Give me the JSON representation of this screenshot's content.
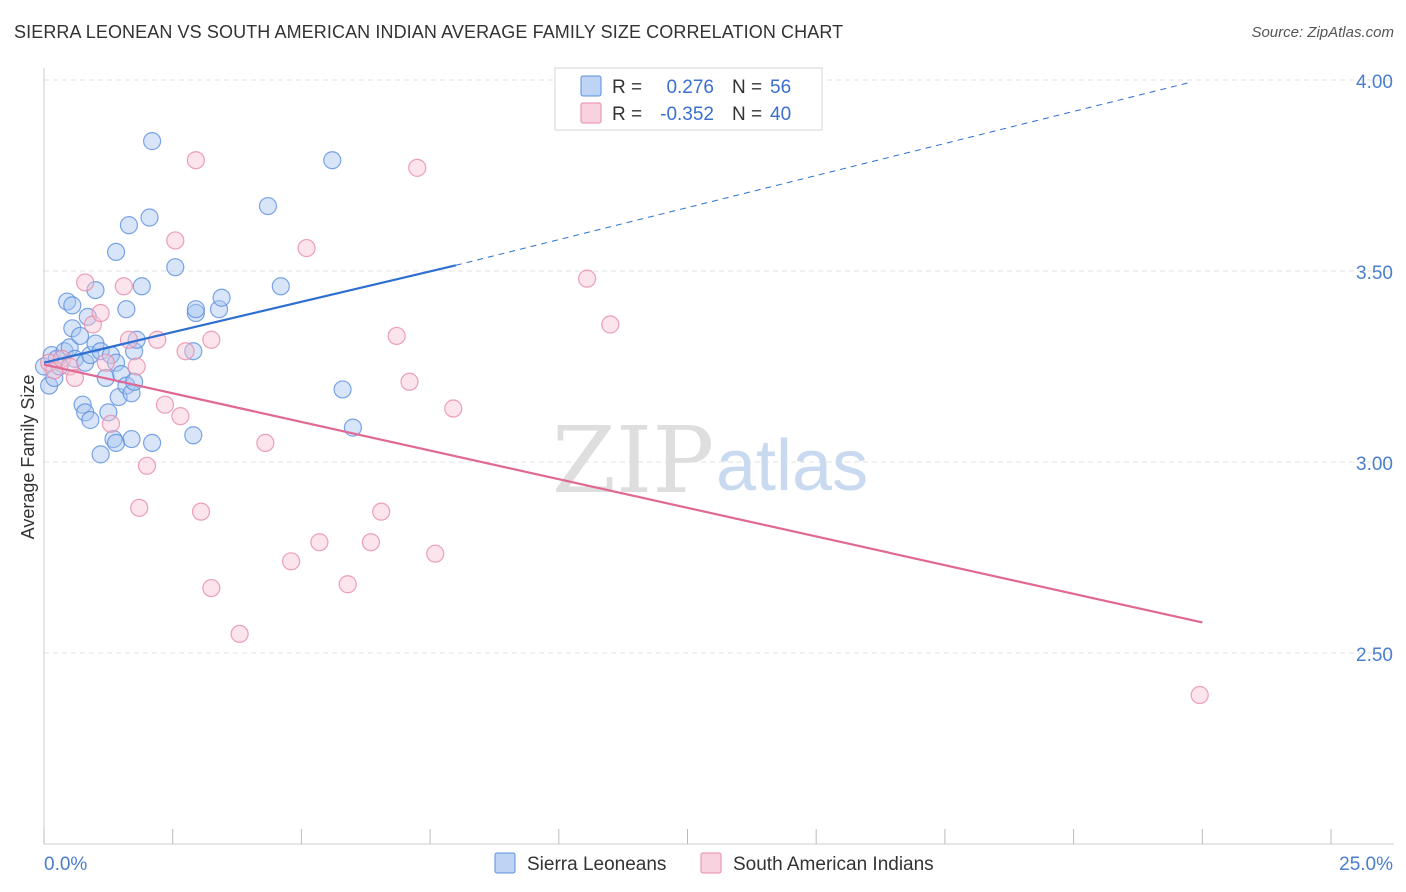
{
  "header": {
    "title": "SIERRA LEONEAN VS SOUTH AMERICAN INDIAN AVERAGE FAMILY SIZE CORRELATION CHART",
    "source": "Source: ZipAtlas.com"
  },
  "watermark": {
    "zip": "ZIP",
    "atlas": "atlas"
  },
  "colors": {
    "blue": "#5b8fe0",
    "blue_fill": "#a8c6f0",
    "blue_line": "#2f6fd0",
    "pink": "#e88aa8",
    "pink_fill": "#f6c3d3",
    "pink_line": "#e06894"
  },
  "legend": {
    "rows": [
      {
        "r_label": "R =",
        "r_value": "0.276",
        "n_label": "N =",
        "n_value": "56",
        "series": "blue"
      },
      {
        "r_label": "R =",
        "r_value": "-0.352",
        "n_label": "N =",
        "n_value": "40",
        "series": "pink"
      }
    ]
  },
  "bottom_legend": {
    "items": [
      {
        "label": "Sierra Leoneans",
        "series": "blue"
      },
      {
        "label": "South American Indians",
        "series": "pink"
      }
    ]
  },
  "chart_data": {
    "type": "scatter",
    "title": "SIERRA LEONEAN VS SOUTH AMERICAN INDIAN AVERAGE FAMILY SIZE CORRELATION CHART",
    "xlabel": "",
    "ylabel": "Average Family Size",
    "xlim": [
      0,
      25
    ],
    "ylim": [
      2.0,
      4.05
    ],
    "x_tick_labels": [
      {
        "value": 0,
        "label": "0.0%"
      },
      {
        "value": 25,
        "label": "25.0%"
      }
    ],
    "x_minor_ticks": [
      0,
      2.5,
      5,
      7.5,
      10,
      12.5,
      15,
      17.5,
      20,
      22.5,
      25
    ],
    "y_ticks": [
      {
        "value": 4.0,
        "label": "4.00"
      },
      {
        "value": 3.5,
        "label": "3.50"
      },
      {
        "value": 3.0,
        "label": "3.00"
      },
      {
        "value": 2.5,
        "label": "2.50"
      }
    ],
    "grid": true,
    "series": [
      {
        "name": "Sierra Leoneans",
        "color": "blue",
        "R": 0.276,
        "N": 56,
        "trend": {
          "x0": 0,
          "y0": 3.26,
          "x1": 8.0,
          "y1": 3.515,
          "dashed_to_x": 22.3,
          "dashed_to_y": 3.995
        },
        "points": [
          [
            0.0,
            3.25
          ],
          [
            0.1,
            3.2
          ],
          [
            0.15,
            3.28
          ],
          [
            0.2,
            3.22
          ],
          [
            0.25,
            3.27
          ],
          [
            0.3,
            3.25
          ],
          [
            0.4,
            3.29
          ],
          [
            0.5,
            3.3
          ],
          [
            0.55,
            3.35
          ],
          [
            0.6,
            3.27
          ],
          [
            0.7,
            3.33
          ],
          [
            0.8,
            3.26
          ],
          [
            0.9,
            3.28
          ],
          [
            1.0,
            3.31
          ],
          [
            1.1,
            3.29
          ],
          [
            1.2,
            3.22
          ],
          [
            1.3,
            3.28
          ],
          [
            1.4,
            3.26
          ],
          [
            1.45,
            3.17
          ],
          [
            1.5,
            3.23
          ],
          [
            1.6,
            3.2
          ],
          [
            1.7,
            3.18
          ],
          [
            1.75,
            3.21
          ],
          [
            0.45,
            3.42
          ],
          [
            0.55,
            3.41
          ],
          [
            0.85,
            3.38
          ],
          [
            1.0,
            3.45
          ],
          [
            1.6,
            3.4
          ],
          [
            1.75,
            3.29
          ],
          [
            1.8,
            3.32
          ],
          [
            0.75,
            3.15
          ],
          [
            0.8,
            3.13
          ],
          [
            0.9,
            3.11
          ],
          [
            1.1,
            3.02
          ],
          [
            1.25,
            3.13
          ],
          [
            1.35,
            3.06
          ],
          [
            1.4,
            3.05
          ],
          [
            1.7,
            3.06
          ],
          [
            2.1,
            3.05
          ],
          [
            1.4,
            3.55
          ],
          [
            1.65,
            3.62
          ],
          [
            1.9,
            3.46
          ],
          [
            2.05,
            3.64
          ],
          [
            2.1,
            3.84
          ],
          [
            2.55,
            3.51
          ],
          [
            2.9,
            3.29
          ],
          [
            2.95,
            3.39
          ],
          [
            2.95,
            3.4
          ],
          [
            2.9,
            3.07
          ],
          [
            3.4,
            3.4
          ],
          [
            3.45,
            3.43
          ],
          [
            4.35,
            3.67
          ],
          [
            4.6,
            3.46
          ],
          [
            5.6,
            3.79
          ],
          [
            5.8,
            3.19
          ],
          [
            6.0,
            3.09
          ]
        ]
      },
      {
        "name": "South American Indians",
        "color": "pink",
        "R": -0.352,
        "N": 40,
        "trend": {
          "x0": 0,
          "y0": 3.255,
          "x1": 22.5,
          "y1": 2.58
        },
        "points": [
          [
            0.1,
            3.26
          ],
          [
            0.2,
            3.24
          ],
          [
            0.35,
            3.27
          ],
          [
            0.5,
            3.25
          ],
          [
            0.6,
            3.22
          ],
          [
            0.8,
            3.47
          ],
          [
            0.95,
            3.36
          ],
          [
            1.1,
            3.39
          ],
          [
            1.2,
            3.26
          ],
          [
            1.3,
            3.1
          ],
          [
            1.55,
            3.46
          ],
          [
            1.65,
            3.32
          ],
          [
            1.8,
            3.25
          ],
          [
            1.85,
            2.88
          ],
          [
            2.0,
            2.99
          ],
          [
            2.2,
            3.32
          ],
          [
            2.35,
            3.15
          ],
          [
            2.55,
            3.58
          ],
          [
            2.65,
            3.12
          ],
          [
            2.75,
            3.29
          ],
          [
            2.95,
            3.79
          ],
          [
            3.05,
            2.87
          ],
          [
            3.25,
            3.32
          ],
          [
            3.25,
            2.67
          ],
          [
            3.8,
            2.55
          ],
          [
            4.3,
            3.05
          ],
          [
            4.8,
            2.74
          ],
          [
            5.1,
            3.56
          ],
          [
            5.35,
            2.79
          ],
          [
            5.9,
            2.68
          ],
          [
            6.35,
            2.79
          ],
          [
            6.55,
            2.87
          ],
          [
            6.85,
            3.33
          ],
          [
            7.1,
            3.21
          ],
          [
            7.25,
            3.77
          ],
          [
            7.6,
            2.76
          ],
          [
            7.95,
            3.14
          ],
          [
            10.55,
            3.48
          ],
          [
            11.0,
            3.36
          ],
          [
            22.45,
            2.39
          ]
        ]
      }
    ]
  }
}
